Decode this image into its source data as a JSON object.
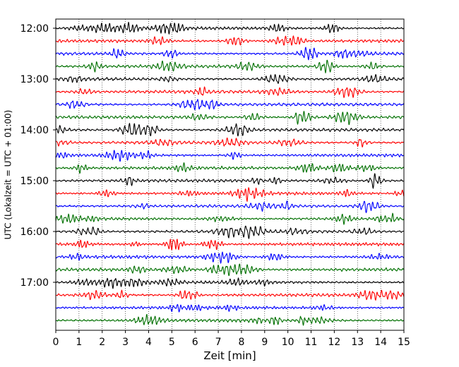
{
  "chart_data": {
    "type": "line",
    "chart_kind": "dayplot-seismogram",
    "xlabel": "Zeit  [min]",
    "ylabel": "UTC (Lokalzeit = UTC + 01:00)",
    "xlim": [
      0,
      15
    ],
    "x_ticks": [
      0,
      1,
      2,
      3,
      4,
      5,
      6,
      7,
      8,
      9,
      10,
      11,
      12,
      13,
      14,
      15
    ],
    "x_tick_labels": [
      "0",
      "1",
      "2",
      "3",
      "4",
      "5",
      "6",
      "7",
      "8",
      "9",
      "10",
      "11",
      "12",
      "13",
      "14",
      "15"
    ],
    "y_tick_labels": [
      "12:00",
      "13:00",
      "14:00",
      "15:00",
      "16:00",
      "17:00"
    ],
    "grid": "vertical dotted at each minute",
    "color_cycle": [
      "#000000",
      "#ff0000",
      "#0000ff",
      "#007000"
    ],
    "traces": [
      {
        "start": "12:00",
        "color": "#000000"
      },
      {
        "start": "12:15",
        "color": "#ff0000"
      },
      {
        "start": "12:30",
        "color": "#0000ff"
      },
      {
        "start": "12:45",
        "color": "#007000"
      },
      {
        "start": "13:00",
        "color": "#000000"
      },
      {
        "start": "13:15",
        "color": "#ff0000"
      },
      {
        "start": "13:30",
        "color": "#0000ff"
      },
      {
        "start": "13:45",
        "color": "#007000"
      },
      {
        "start": "14:00",
        "color": "#000000"
      },
      {
        "start": "14:15",
        "color": "#ff0000"
      },
      {
        "start": "14:30",
        "color": "#0000ff"
      },
      {
        "start": "14:45",
        "color": "#007000"
      },
      {
        "start": "15:00",
        "color": "#000000"
      },
      {
        "start": "15:15",
        "color": "#ff0000"
      },
      {
        "start": "15:30",
        "color": "#0000ff"
      },
      {
        "start": "15:45",
        "color": "#007000"
      },
      {
        "start": "16:00",
        "color": "#000000"
      },
      {
        "start": "16:15",
        "color": "#ff0000"
      },
      {
        "start": "16:30",
        "color": "#0000ff"
      },
      {
        "start": "16:45",
        "color": "#007000"
      },
      {
        "start": "17:00",
        "color": "#000000"
      },
      {
        "start": "17:15",
        "color": "#ff0000"
      },
      {
        "start": "17:30",
        "color": "#0000ff"
      },
      {
        "start": "17:45",
        "color": "#007000"
      }
    ]
  }
}
